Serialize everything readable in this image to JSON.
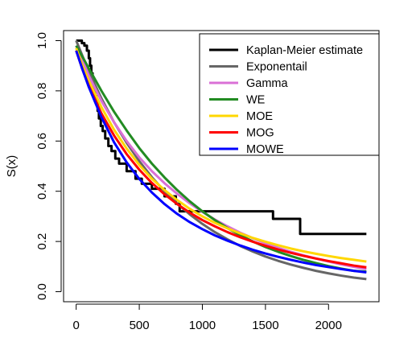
{
  "chart_data": {
    "type": "line",
    "title": "",
    "xlabel": "",
    "ylabel": "S(x)",
    "xlim": [
      -100,
      2400
    ],
    "ylim": [
      -0.04,
      1.04
    ],
    "xticks": [
      0,
      500,
      1000,
      1500,
      2000
    ],
    "yticks": [
      0.0,
      0.2,
      0.4,
      0.6,
      0.8,
      1.0
    ],
    "x_tick_labels": [
      "0",
      "500",
      "1000",
      "1500",
      "2000"
    ],
    "y_tick_labels": [
      "0.0",
      "0.2",
      "0.4",
      "0.6",
      "0.8",
      "1.0"
    ],
    "grid": false,
    "legend_position": "top-right",
    "series": [
      {
        "name": "Kaplan-Meier estimate",
        "color": "#000000",
        "style": "step",
        "x": [
          0,
          45,
          65,
          85,
          100,
          110,
          120,
          130,
          140,
          150,
          160,
          170,
          180,
          195,
          210,
          230,
          255,
          280,
          310,
          340,
          400,
          440,
          470,
          520,
          600,
          700,
          790,
          820,
          1000,
          1560,
          1775,
          2300
        ],
        "y": [
          1.0,
          0.99,
          0.98,
          0.96,
          0.93,
          0.9,
          0.87,
          0.84,
          0.81,
          0.78,
          0.75,
          0.72,
          0.69,
          0.66,
          0.64,
          0.61,
          0.58,
          0.56,
          0.53,
          0.51,
          0.48,
          0.48,
          0.45,
          0.43,
          0.41,
          0.38,
          0.35,
          0.32,
          0.32,
          0.29,
          0.23,
          0.23
        ]
      },
      {
        "name": "Exponentail",
        "color": "#666666",
        "x": [
          0,
          100,
          200,
          300,
          400,
          500,
          600,
          700,
          800,
          900,
          1000,
          1100,
          1200,
          1300,
          1400,
          1500,
          1600,
          1700,
          1800,
          1900,
          2000,
          2100,
          2200,
          2300
        ],
        "y": [
          1.0,
          0.877,
          0.77,
          0.675,
          0.593,
          0.52,
          0.456,
          0.4,
          0.351,
          0.308,
          0.27,
          0.237,
          0.208,
          0.182,
          0.16,
          0.14,
          0.123,
          0.108,
          0.095,
          0.083,
          0.073,
          0.064,
          0.056,
          0.05
        ]
      },
      {
        "name": "Gamma",
        "color": "#DA70D6",
        "x": [
          0,
          50,
          100,
          200,
          300,
          400,
          500,
          600,
          700,
          800,
          900,
          1000,
          1100,
          1200,
          1300,
          1400,
          1500,
          1600,
          1700,
          1800,
          1900,
          2000,
          2100,
          2200,
          2300
        ],
        "y": [
          0.98,
          0.92,
          0.86,
          0.76,
          0.675,
          0.6,
          0.535,
          0.48,
          0.432,
          0.39,
          0.352,
          0.318,
          0.287,
          0.26,
          0.235,
          0.213,
          0.193,
          0.175,
          0.159,
          0.145,
          0.132,
          0.12,
          0.109,
          0.099,
          0.09
        ]
      },
      {
        "name": "WE",
        "color": "#228B22",
        "x": [
          0,
          50,
          100,
          200,
          300,
          400,
          500,
          600,
          700,
          800,
          900,
          1000,
          1100,
          1200,
          1300,
          1400,
          1500,
          1600,
          1700,
          1800,
          1900,
          2000,
          2100,
          2200,
          2300
        ],
        "y": [
          0.98,
          0.935,
          0.89,
          0.8,
          0.717,
          0.642,
          0.572,
          0.51,
          0.455,
          0.405,
          0.36,
          0.32,
          0.285,
          0.253,
          0.225,
          0.2,
          0.178,
          0.159,
          0.142,
          0.127,
          0.114,
          0.102,
          0.092,
          0.083,
          0.08
        ]
      },
      {
        "name": "MOE",
        "color": "#FFD700",
        "x": [
          0,
          50,
          100,
          200,
          300,
          400,
          500,
          600,
          700,
          800,
          900,
          1000,
          1100,
          1200,
          1300,
          1400,
          1500,
          1600,
          1700,
          1800,
          1900,
          2000,
          2100,
          2200,
          2300
        ],
        "y": [
          0.97,
          0.9,
          0.84,
          0.735,
          0.645,
          0.57,
          0.505,
          0.45,
          0.405,
          0.365,
          0.33,
          0.3,
          0.274,
          0.252,
          0.232,
          0.214,
          0.199,
          0.185,
          0.172,
          0.161,
          0.151,
          0.142,
          0.134,
          0.127,
          0.12
        ]
      },
      {
        "name": "MOG",
        "color": "#FF0000",
        "x": [
          0,
          50,
          100,
          200,
          300,
          400,
          500,
          600,
          700,
          800,
          900,
          1000,
          1100,
          1200,
          1300,
          1400,
          1500,
          1600,
          1700,
          1800,
          1900,
          2000,
          2100,
          2200,
          2300
        ],
        "y": [
          0.96,
          0.885,
          0.82,
          0.71,
          0.622,
          0.548,
          0.486,
          0.433,
          0.388,
          0.349,
          0.315,
          0.285,
          0.26,
          0.237,
          0.217,
          0.199,
          0.183,
          0.168,
          0.155,
          0.143,
          0.132,
          0.122,
          0.113,
          0.104,
          0.097
        ]
      },
      {
        "name": "MOWE",
        "color": "#0000FF",
        "x": [
          0,
          50,
          100,
          200,
          300,
          400,
          500,
          600,
          700,
          800,
          900,
          1000,
          1100,
          1200,
          1300,
          1400,
          1500,
          1600,
          1700,
          1800,
          1900,
          2000,
          2100,
          2200,
          2300
        ],
        "y": [
          0.96,
          0.885,
          0.815,
          0.695,
          0.595,
          0.515,
          0.449,
          0.395,
          0.349,
          0.31,
          0.277,
          0.249,
          0.224,
          0.203,
          0.184,
          0.167,
          0.152,
          0.139,
          0.127,
          0.116,
          0.106,
          0.098,
          0.09,
          0.083,
          0.077
        ]
      }
    ]
  }
}
